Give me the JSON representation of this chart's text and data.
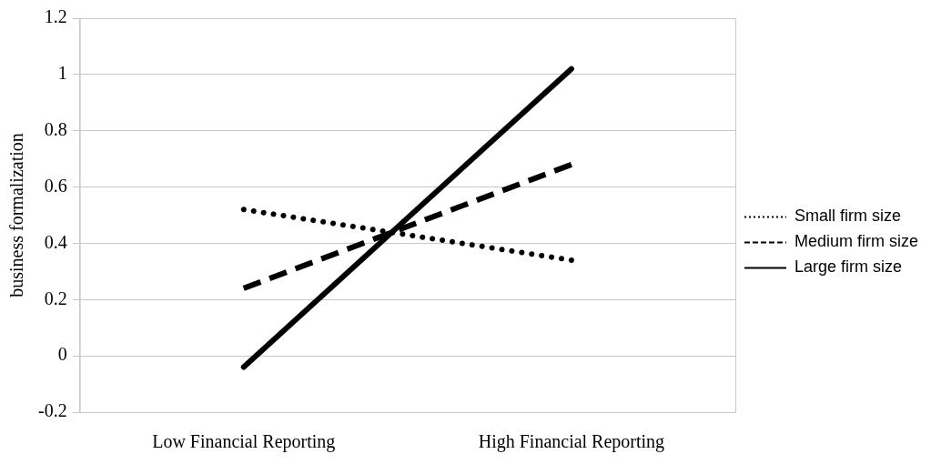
{
  "chart_data": {
    "type": "line",
    "ylabel": "business formalization",
    "categories": [
      "Low Financial Reporting",
      "High Financial Reporting"
    ],
    "series": [
      {
        "name": "Small firm size",
        "color": "#000000",
        "line_style": "dotted",
        "values": [
          0.52,
          0.34
        ]
      },
      {
        "name": "Medium firm size",
        "color": "#000000",
        "line_style": "dashed",
        "values": [
          0.24,
          0.68
        ]
      },
      {
        "name": "Large firm size",
        "color": "#000000",
        "line_style": "solid",
        "values": [
          -0.04,
          1.02
        ]
      }
    ],
    "ylim": [
      -0.2,
      1.2
    ],
    "yticks": [
      -0.2,
      0,
      0.2,
      0.4,
      0.6,
      0.8,
      1,
      1.2
    ],
    "grid": "y",
    "legend": "right",
    "marker": "none"
  }
}
